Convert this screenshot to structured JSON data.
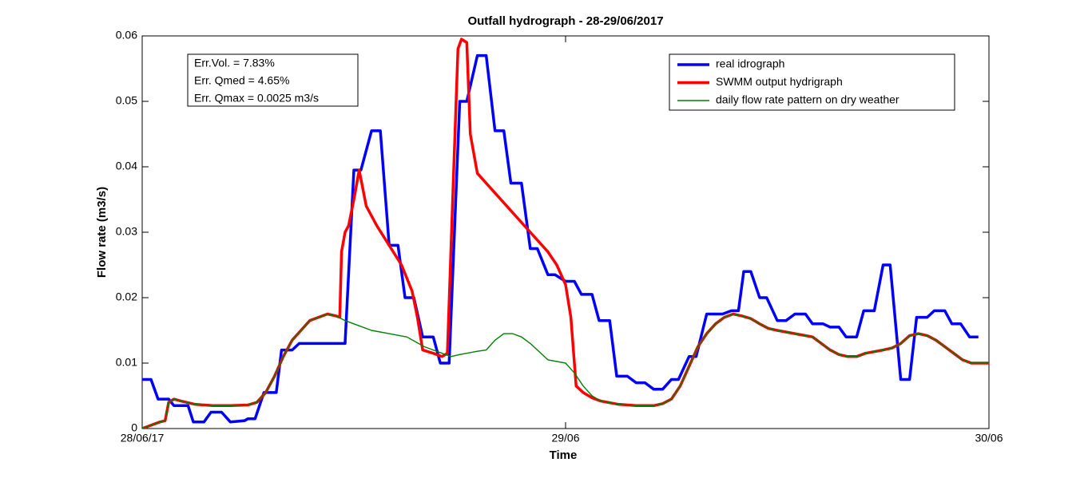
{
  "chart_data": {
    "type": "line",
    "title": "Outfall hydrograph - 28-29/06/2017",
    "x_label": "Time",
    "y_label": "Flow rate (m3/s)",
    "annotations": [
      "Err.Vol. = 7.83%",
      "Err. Qmed = 4.65%",
      "Err. Qmax =  0.0025 m3/s"
    ],
    "xlim": [
      0,
      48
    ],
    "xticks": [
      {
        "value": 0,
        "label": "28/06/17"
      },
      {
        "value": 24,
        "label": "29/06"
      },
      {
        "value": 48,
        "label": "30/06"
      }
    ],
    "ylim": [
      0,
      0.06
    ],
    "yticks": [
      0,
      0.01,
      0.02,
      0.03,
      0.04,
      0.05,
      0.06
    ],
    "grid": false,
    "legend": "upper right",
    "series": [
      {
        "name": "real idrograph",
        "color": "#0000ff",
        "x": [
          0,
          0.5,
          0.9,
          1.5,
          1.8,
          2.6,
          2.9,
          3.5,
          3.9,
          4.5,
          5.0,
          5.8,
          6.0,
          6.4,
          6.9,
          7.6,
          7.9,
          8.5,
          8.9,
          11.5,
          12.0,
          12.4,
          13.0,
          13.5,
          14.0,
          14.5,
          14.9,
          15.4,
          15.9,
          16.5,
          16.9,
          17.4,
          18.0,
          18.4,
          19.0,
          19.5,
          20.0,
          20.5,
          20.9,
          21.5,
          22.0,
          22.4,
          23.0,
          23.4,
          24.0,
          24.5,
          24.9,
          25.5,
          25.9,
          26.5,
          26.9,
          27.5,
          28.0,
          28.5,
          29.0,
          29.5,
          30.0,
          30.4,
          31.0,
          31.4,
          32.0,
          32.9,
          33.4,
          33.8,
          34.1,
          34.5,
          35.0,
          35.4,
          36.0,
          36.5,
          37.0,
          37.6,
          38.0,
          38.6,
          39.0,
          39.5,
          39.9,
          40.5,
          40.9,
          41.5,
          42.0,
          42.4,
          43.0,
          43.5,
          43.9,
          44.5,
          44.9,
          45.5,
          45.9,
          46.4,
          46.9,
          47.4
        ],
        "values": [
          0.0075,
          0.0075,
          0.0045,
          0.0045,
          0.0035,
          0.0035,
          0.001,
          0.001,
          0.0025,
          0.0025,
          0.001,
          0.0012,
          0.0015,
          0.0015,
          0.0055,
          0.0055,
          0.012,
          0.012,
          0.013,
          0.013,
          0.0395,
          0.0395,
          0.0455,
          0.0455,
          0.028,
          0.028,
          0.02,
          0.02,
          0.014,
          0.014,
          0.01,
          0.01,
          0.05,
          0.05,
          0.057,
          0.057,
          0.0455,
          0.0455,
          0.0375,
          0.0375,
          0.0275,
          0.0275,
          0.0235,
          0.0235,
          0.0225,
          0.0225,
          0.0205,
          0.0205,
          0.0165,
          0.0165,
          0.008,
          0.008,
          0.007,
          0.007,
          0.006,
          0.006,
          0.0075,
          0.0075,
          0.011,
          0.011,
          0.0175,
          0.0175,
          0.018,
          0.018,
          0.024,
          0.024,
          0.02,
          0.02,
          0.0165,
          0.0165,
          0.0175,
          0.0175,
          0.016,
          0.016,
          0.0155,
          0.0155,
          0.014,
          0.014,
          0.018,
          0.018,
          0.025,
          0.025,
          0.0075,
          0.0075,
          0.017,
          0.017,
          0.018,
          0.018,
          0.016,
          0.016,
          0.014,
          0.014
        ]
      },
      {
        "name": "SWMM output hydrigraph",
        "color": "#ff0000",
        "x": [
          0,
          0.5,
          1,
          1.3,
          1.5,
          1.8,
          2.2,
          3,
          4,
          5,
          6,
          6.5,
          7,
          7.5,
          8,
          8.5,
          9,
          9.5,
          10,
          10.5,
          11,
          11.2,
          11.3,
          11.5,
          11.7,
          12.0,
          12.3,
          12.7,
          13.3,
          14,
          14.7,
          15.3,
          15.6,
          15.9,
          16.5,
          17,
          17.3,
          17.6,
          17.9,
          18.1,
          18.4,
          18.6,
          19,
          20,
          21,
          22,
          23,
          23.5,
          24,
          24.3,
          24.6,
          25,
          25.5,
          26,
          27,
          28,
          29,
          29.5,
          30,
          30.5,
          31,
          31.5,
          32,
          32.5,
          33,
          33.5,
          34,
          34.5,
          35,
          35.5,
          36,
          37,
          38,
          38.5,
          39,
          39.5,
          40,
          40.5,
          41,
          42,
          42.5,
          43,
          43.5,
          44,
          44.5,
          45,
          45.5,
          46,
          46.5,
          47,
          48
        ],
        "values": [
          0,
          0.0005,
          0.001,
          0.0012,
          0.004,
          0.0045,
          0.0042,
          0.0037,
          0.0035,
          0.0035,
          0.0036,
          0.004,
          0.0055,
          0.008,
          0.011,
          0.0135,
          0.015,
          0.0165,
          0.017,
          0.0175,
          0.0172,
          0.017,
          0.027,
          0.03,
          0.031,
          0.035,
          0.0395,
          0.034,
          0.031,
          0.028,
          0.025,
          0.021,
          0.017,
          0.012,
          0.0115,
          0.011,
          0.0115,
          0.035,
          0.058,
          0.0595,
          0.059,
          0.045,
          0.039,
          0.036,
          0.033,
          0.03,
          0.027,
          0.025,
          0.022,
          0.017,
          0.0065,
          0.0055,
          0.0047,
          0.0042,
          0.0037,
          0.0035,
          0.0035,
          0.0038,
          0.0045,
          0.0065,
          0.0095,
          0.0125,
          0.0145,
          0.016,
          0.017,
          0.0175,
          0.0172,
          0.0168,
          0.016,
          0.0153,
          0.015,
          0.0145,
          0.014,
          0.013,
          0.012,
          0.0113,
          0.011,
          0.011,
          0.0115,
          0.012,
          0.0123,
          0.013,
          0.0142,
          0.0145,
          0.0142,
          0.0135,
          0.0125,
          0.0115,
          0.0105,
          0.01,
          0.01
        ]
      },
      {
        "name": "daily flow rate pattern on dry weather",
        "color": "#008000",
        "x": [
          0,
          0.5,
          1,
          1.3,
          1.5,
          1.8,
          2.2,
          3,
          4,
          5,
          6,
          6.5,
          7,
          7.5,
          8,
          8.5,
          9,
          9.5,
          10,
          10.5,
          11,
          11.5,
          12,
          13,
          14,
          15,
          16,
          17,
          17.5,
          18,
          19,
          19.5,
          20,
          20.5,
          21,
          21.5,
          22,
          23,
          24,
          24.5,
          25,
          25.5,
          26,
          27,
          28,
          29,
          29.5,
          30,
          30.5,
          31,
          31.5,
          32,
          32.5,
          33,
          33.5,
          34,
          34.5,
          35,
          35.5,
          36,
          37,
          38,
          38.5,
          39,
          39.5,
          40,
          40.5,
          41,
          42,
          42.5,
          43,
          43.5,
          44,
          44.5,
          45,
          45.5,
          46,
          46.5,
          47,
          48
        ],
        "values": [
          0,
          0.0005,
          0.001,
          0.0012,
          0.004,
          0.0045,
          0.0042,
          0.0037,
          0.0035,
          0.0035,
          0.0036,
          0.004,
          0.0055,
          0.008,
          0.011,
          0.0135,
          0.015,
          0.0165,
          0.017,
          0.0175,
          0.0172,
          0.0165,
          0.016,
          0.015,
          0.0145,
          0.014,
          0.0125,
          0.0115,
          0.011,
          0.0113,
          0.0118,
          0.012,
          0.0135,
          0.0145,
          0.0145,
          0.014,
          0.013,
          0.0105,
          0.01,
          0.0085,
          0.0065,
          0.005,
          0.0042,
          0.0037,
          0.0035,
          0.0035,
          0.0038,
          0.0045,
          0.0065,
          0.0095,
          0.0125,
          0.0145,
          0.016,
          0.017,
          0.0175,
          0.0172,
          0.0168,
          0.016,
          0.0153,
          0.015,
          0.0145,
          0.014,
          0.013,
          0.012,
          0.0113,
          0.011,
          0.011,
          0.0115,
          0.012,
          0.0123,
          0.013,
          0.0142,
          0.0145,
          0.0142,
          0.0135,
          0.0125,
          0.0115,
          0.0105,
          0.01,
          0.01
        ]
      }
    ]
  }
}
